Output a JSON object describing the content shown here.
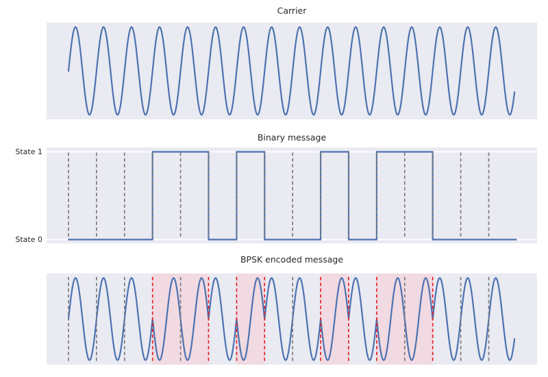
{
  "colors": {
    "figure_bg": "#ffffff",
    "axes_bg": "#eaeaf2",
    "signal_line": "#4c72b0",
    "bit_boundary_line": "#7c7c7c",
    "phase_shift_line": "#e32227",
    "phase_shift_shade": "#f1dae2",
    "gridline": "#ffffff",
    "text": "#262626"
  },
  "chart_data": [
    {
      "type": "line",
      "title": "Carrier",
      "signal": "sinusoid",
      "carrier_cycles": 16,
      "amplitude": 1,
      "t_range_bits": [
        0,
        16
      ],
      "ylim": [
        -1.1,
        1.1
      ],
      "grid": "off",
      "x_tick_labels": [],
      "y_tick_labels": []
    },
    {
      "type": "line",
      "title": "Binary message",
      "bits": [
        0,
        0,
        0,
        1,
        1,
        0,
        1,
        0,
        0,
        1,
        0,
        1,
        1,
        0,
        0,
        0
      ],
      "bit_string": "0001101001011000",
      "n_bits": 16,
      "yticks": [
        {
          "value": 1,
          "label": "State 1"
        },
        {
          "value": 0,
          "label": "State 0"
        }
      ],
      "bit_boundaries": [
        0,
        1,
        2,
        3,
        4,
        5,
        6,
        7,
        8,
        9,
        10,
        11,
        12,
        13,
        14,
        15
      ],
      "boundary_style": "gray-dashed",
      "ylim": [
        -0.05,
        1.05
      ],
      "gridlines_at": [
        0,
        1
      ]
    },
    {
      "type": "line",
      "title": "BPSK encoded message",
      "bits": [
        0,
        0,
        0,
        1,
        1,
        0,
        1,
        0,
        0,
        1,
        0,
        1,
        1,
        0,
        0,
        0
      ],
      "encoding": "sin(2*pi*t + pi*bit)",
      "carrier_cycles_per_bit": 1,
      "amplitude": 1,
      "shaded_bit_spans": [
        [
          3,
          5
        ],
        [
          6,
          7
        ],
        [
          9,
          10
        ],
        [
          11,
          13
        ]
      ],
      "phase_shift_boundaries": [
        3,
        5,
        6,
        7,
        9,
        10,
        11,
        13
      ],
      "no_shift_boundaries": [
        0,
        1,
        2,
        4,
        8,
        12,
        14,
        15
      ],
      "ylim": [
        -1.1,
        1.1
      ],
      "grid": "off"
    }
  ]
}
